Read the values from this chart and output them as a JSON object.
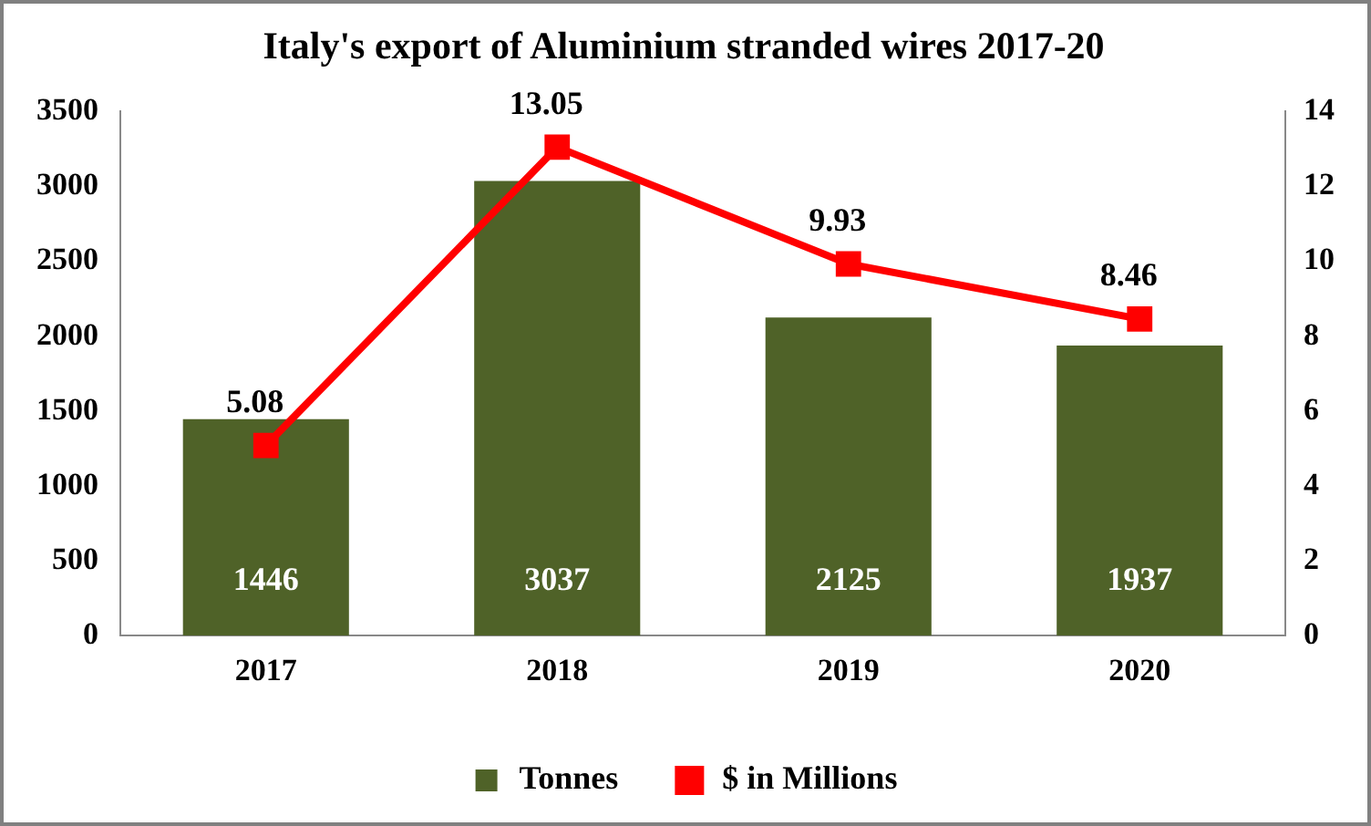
{
  "chart_data": {
    "type": "bar",
    "title": "Italy's export of Aluminium stranded wires 2017-20",
    "categories": [
      "2017",
      "2018",
      "2019",
      "2020"
    ],
    "series": [
      {
        "name": "Tonnes",
        "color": "#4f6228",
        "values": [
          1446,
          3037,
          2125,
          1937
        ]
      },
      {
        "name": "$ in Millions",
        "type": "line",
        "axis": "y2",
        "color": "#ff0000",
        "values": [
          5.08,
          13.05,
          9.93,
          8.46
        ],
        "marker": "square",
        "line_style": "solid"
      }
    ],
    "ylim": [
      0,
      3500
    ],
    "yticks": [
      0,
      500,
      1000,
      1500,
      2000,
      2500,
      3000,
      3500
    ],
    "y2lim": [
      0,
      14
    ],
    "y2ticks": [
      0,
      2,
      4,
      6,
      8,
      10,
      12,
      14
    ],
    "grid": false,
    "legend": "bottom",
    "data_labels": true
  }
}
